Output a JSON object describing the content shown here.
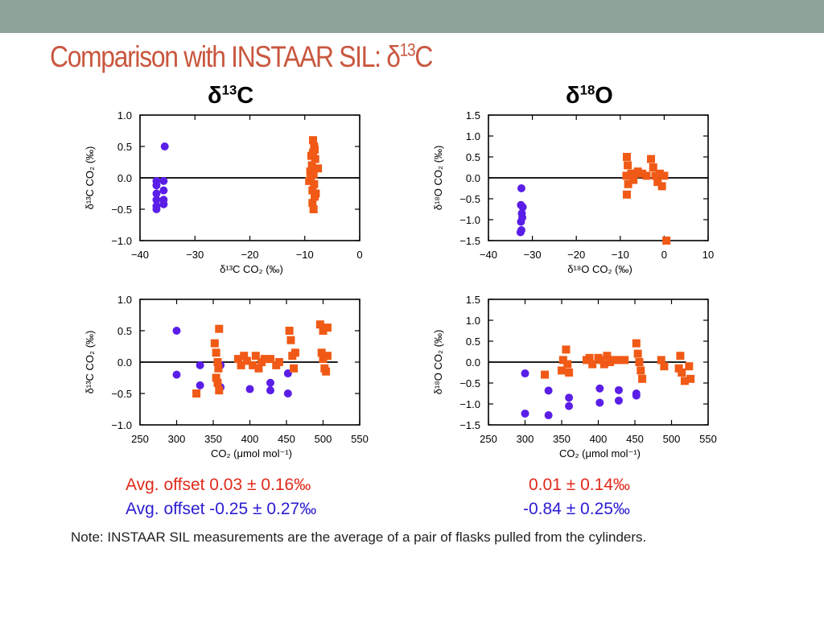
{
  "slide": {
    "title_main": "Comparison with INSTAAR SIL:  δ",
    "title_sup": "13",
    "title_end": "C",
    "col_left": {
      "main": "δ",
      "sup": "13",
      "end": "C"
    },
    "col_right": {
      "main": "δ",
      "sup": "18",
      "end": "O"
    },
    "summary": {
      "left_red": "Avg. offset  0.03 ± 0.16‰",
      "left_blue": "Avg. offset -0.25 ± 0.27‰",
      "right_red": "0.01 ± 0.14‰",
      "right_blue": "-0.84 ± 0.25‰"
    },
    "note": "Note:  INSTAAR SIL measurements are the average of a pair of flasks pulled from the cylinders."
  },
  "colors": {
    "orange": "#f05a16",
    "purple": "#5a1ee8",
    "title": "#c9573f"
  },
  "chart_data": [
    {
      "type": "scatter",
      "xlabel": "δ¹³C CO₂ (‰)",
      "ylabel": "δ¹³C CO₂ (‰)",
      "xlim": [
        -40,
        0
      ],
      "ylim": [
        -1.0,
        1.0
      ],
      "xticks": [
        -40,
        -30,
        -20,
        -10,
        0
      ],
      "yticks": [
        -1.0,
        -0.5,
        0.0,
        0.5,
        1.0
      ],
      "zero_line": true,
      "series": [
        {
          "marker": "circle",
          "color": "purple",
          "points": [
            [
              -35.5,
              0.5
            ],
            [
              -37,
              -0.05
            ],
            [
              -37,
              -0.12
            ],
            [
              -37,
              -0.25
            ],
            [
              -37,
              -0.35
            ],
            [
              -37,
              -0.45
            ],
            [
              -37,
              -0.5
            ],
            [
              -35.7,
              -0.05
            ],
            [
              -35.7,
              -0.2
            ],
            [
              -35.7,
              -0.35
            ],
            [
              -35.7,
              -0.42
            ]
          ]
        },
        {
          "marker": "square",
          "color": "orange",
          "points": [
            [
              -8.5,
              0.6
            ],
            [
              -8.3,
              0.5
            ],
            [
              -8.5,
              0.4
            ],
            [
              -8.1,
              0.3
            ],
            [
              -8.7,
              0.2
            ],
            [
              -7.6,
              0.15
            ],
            [
              -8.4,
              0.05
            ],
            [
              -8.9,
              0.0
            ],
            [
              -8.3,
              -0.1
            ],
            [
              -9.2,
              -0.05
            ],
            [
              -8.6,
              -0.2
            ],
            [
              -8.2,
              -0.3
            ],
            [
              -8.6,
              -0.4
            ],
            [
              -8.4,
              -0.5
            ],
            [
              -8.0,
              -0.25
            ],
            [
              -9.0,
              0.1
            ],
            [
              -8.2,
              0.45
            ],
            [
              -8.8,
              0.35
            ]
          ]
        }
      ]
    },
    {
      "type": "scatter",
      "xlabel": "δ¹⁸O CO₂ (‰)",
      "ylabel": "δ¹⁸O CO₂ (‰)",
      "xlim": [
        -40,
        10
      ],
      "ylim": [
        -1.5,
        1.5
      ],
      "xticks": [
        -40,
        -30,
        -20,
        -10,
        0,
        10
      ],
      "yticks": [
        -1.5,
        -1.0,
        -0.5,
        0.0,
        0.5,
        1.0,
        1.5
      ],
      "zero_line": true,
      "series": [
        {
          "marker": "circle",
          "color": "purple",
          "points": [
            [
              -32.5,
              -0.25
            ],
            [
              -32.6,
              -0.65
            ],
            [
              -32.2,
              -0.7
            ],
            [
              -32.4,
              -0.85
            ],
            [
              -32.3,
              -0.95
            ],
            [
              -32.6,
              -1.05
            ],
            [
              -32.5,
              -1.25
            ],
            [
              -32.7,
              -1.3
            ]
          ]
        },
        {
          "marker": "square",
          "color": "orange",
          "points": [
            [
              -8.5,
              0.5
            ],
            [
              -8.3,
              0.3
            ],
            [
              -8.6,
              0.05
            ],
            [
              -8.2,
              -0.15
            ],
            [
              -8.5,
              -0.4
            ],
            [
              -7.5,
              0.1
            ],
            [
              -7,
              -0.05
            ],
            [
              -6.5,
              0.1
            ],
            [
              -6,
              0.15
            ],
            [
              -5,
              0.1
            ],
            [
              -4,
              0.05
            ],
            [
              -3,
              0.45
            ],
            [
              -2.5,
              0.25
            ],
            [
              -2,
              0.05
            ],
            [
              -1.5,
              -0.1
            ],
            [
              -1,
              0.1
            ],
            [
              -0.5,
              -0.2
            ],
            [
              0,
              0.05
            ],
            [
              0.5,
              -1.5
            ]
          ]
        }
      ]
    },
    {
      "type": "scatter",
      "xlabel": "CO₂ (μmol mol⁻¹)",
      "ylabel": "δ¹³C CO₂ (‰)",
      "xlim": [
        250,
        550
      ],
      "ylim": [
        -1.0,
        1.0
      ],
      "xticks": [
        250,
        300,
        350,
        400,
        450,
        500,
        550
      ],
      "yticks": [
        -1.0,
        -0.5,
        0.0,
        0.5,
        1.0
      ],
      "zero_line": true,
      "series": [
        {
          "marker": "circle",
          "color": "purple",
          "points": [
            [
              300,
              0.5
            ],
            [
              300,
              -0.2
            ],
            [
              332,
              -0.05
            ],
            [
              332,
              -0.37
            ],
            [
              360,
              -0.05
            ],
            [
              360,
              -0.4
            ],
            [
              400,
              -0.43
            ],
            [
              428,
              -0.33
            ],
            [
              428,
              -0.45
            ],
            [
              452,
              -0.18
            ],
            [
              452,
              -0.5
            ]
          ]
        },
        {
          "marker": "square",
          "color": "orange",
          "points": [
            [
              327,
              -0.5
            ],
            [
              352,
              0.3
            ],
            [
              354,
              0.15
            ],
            [
              354,
              -0.25
            ],
            [
              356,
              0.0
            ],
            [
              357,
              -0.1
            ],
            [
              358,
              0.53
            ],
            [
              358,
              -0.45
            ],
            [
              356,
              -0.33
            ],
            [
              384,
              0.05
            ],
            [
              388,
              -0.05
            ],
            [
              392,
              0.1
            ],
            [
              396,
              0.02
            ],
            [
              404,
              -0.05
            ],
            [
              408,
              0.1
            ],
            [
              412,
              -0.1
            ],
            [
              416,
              0.0
            ],
            [
              420,
              0.05
            ],
            [
              428,
              0.05
            ],
            [
              436,
              -0.05
            ],
            [
              440,
              0.0
            ],
            [
              454,
              0.5
            ],
            [
              456,
              0.35
            ],
            [
              458,
              0.1
            ],
            [
              460,
              -0.1
            ],
            [
              462,
              0.15
            ],
            [
              496,
              0.6
            ],
            [
              500,
              0.5
            ],
            [
              506,
              0.55
            ],
            [
              498,
              0.15
            ],
            [
              500,
              0.05
            ],
            [
              502,
              -0.1
            ],
            [
              504,
              -0.15
            ],
            [
              506,
              0.1
            ]
          ]
        }
      ]
    },
    {
      "type": "scatter",
      "xlabel": "CO₂ (μmol mol⁻¹)",
      "ylabel": "δ¹⁸O CO₂ (‰)",
      "xlim": [
        250,
        550
      ],
      "ylim": [
        -1.5,
        1.5
      ],
      "xticks": [
        250,
        300,
        350,
        400,
        450,
        500,
        550
      ],
      "yticks": [
        -1.5,
        -1.0,
        -0.5,
        0.0,
        0.5,
        1.0,
        1.5
      ],
      "zero_line": true,
      "series": [
        {
          "marker": "circle",
          "color": "purple",
          "points": [
            [
              300,
              -0.27
            ],
            [
              300,
              -1.23
            ],
            [
              332,
              -0.68
            ],
            [
              332,
              -1.27
            ],
            [
              360,
              -0.85
            ],
            [
              360,
              -1.05
            ],
            [
              402,
              -0.63
            ],
            [
              402,
              -0.97
            ],
            [
              428,
              -0.67
            ],
            [
              428,
              -0.92
            ],
            [
              452,
              -0.75
            ],
            [
              452,
              -0.8
            ]
          ]
        },
        {
          "marker": "square",
          "color": "orange",
          "points": [
            [
              327,
              -0.3
            ],
            [
              350,
              -0.2
            ],
            [
              352,
              0.05
            ],
            [
              356,
              0.3
            ],
            [
              358,
              -0.05
            ],
            [
              360,
              -0.25
            ],
            [
              384,
              0.05
            ],
            [
              388,
              0.1
            ],
            [
              392,
              -0.05
            ],
            [
              400,
              0.1
            ],
            [
              404,
              0.05
            ],
            [
              408,
              -0.05
            ],
            [
              412,
              0.15
            ],
            [
              416,
              0.0
            ],
            [
              420,
              0.05
            ],
            [
              428,
              0.05
            ],
            [
              436,
              0.05
            ],
            [
              452,
              0.45
            ],
            [
              454,
              0.2
            ],
            [
              456,
              0.0
            ],
            [
              458,
              -0.2
            ],
            [
              460,
              -0.4
            ],
            [
              486,
              0.05
            ],
            [
              490,
              -0.1
            ],
            [
              510,
              -0.15
            ],
            [
              512,
              0.15
            ],
            [
              514,
              -0.25
            ],
            [
              518,
              -0.45
            ],
            [
              524,
              -0.1
            ],
            [
              526,
              -0.4
            ]
          ]
        }
      ]
    }
  ]
}
